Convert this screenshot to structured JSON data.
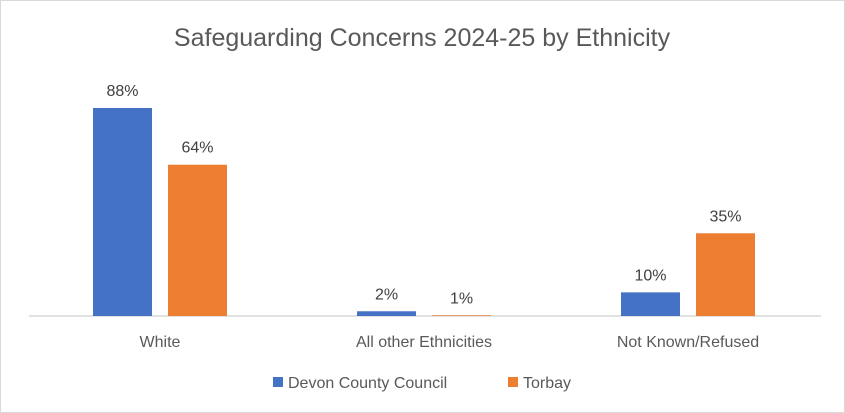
{
  "chart_data": {
    "type": "bar",
    "title": "Safeguarding Concerns 2024-25 by Ethnicity",
    "categories": [
      "White",
      "All other Ethnicities",
      "Not Known/Refused"
    ],
    "series": [
      {
        "name": "Devon County Council",
        "color": "#4472C4",
        "values": [
          88,
          2,
          10
        ],
        "labels": [
          "88%",
          "2%",
          "10%"
        ]
      },
      {
        "name": "Torbay",
        "color": "#ED7D31",
        "values": [
          64,
          1,
          35
        ],
        "labels": [
          "64%",
          "1%",
          "35%"
        ]
      }
    ],
    "xlabel": "",
    "ylabel": "",
    "ylim": [
      0,
      100
    ],
    "grid": false,
    "legend": "bottom",
    "unit": "%"
  }
}
